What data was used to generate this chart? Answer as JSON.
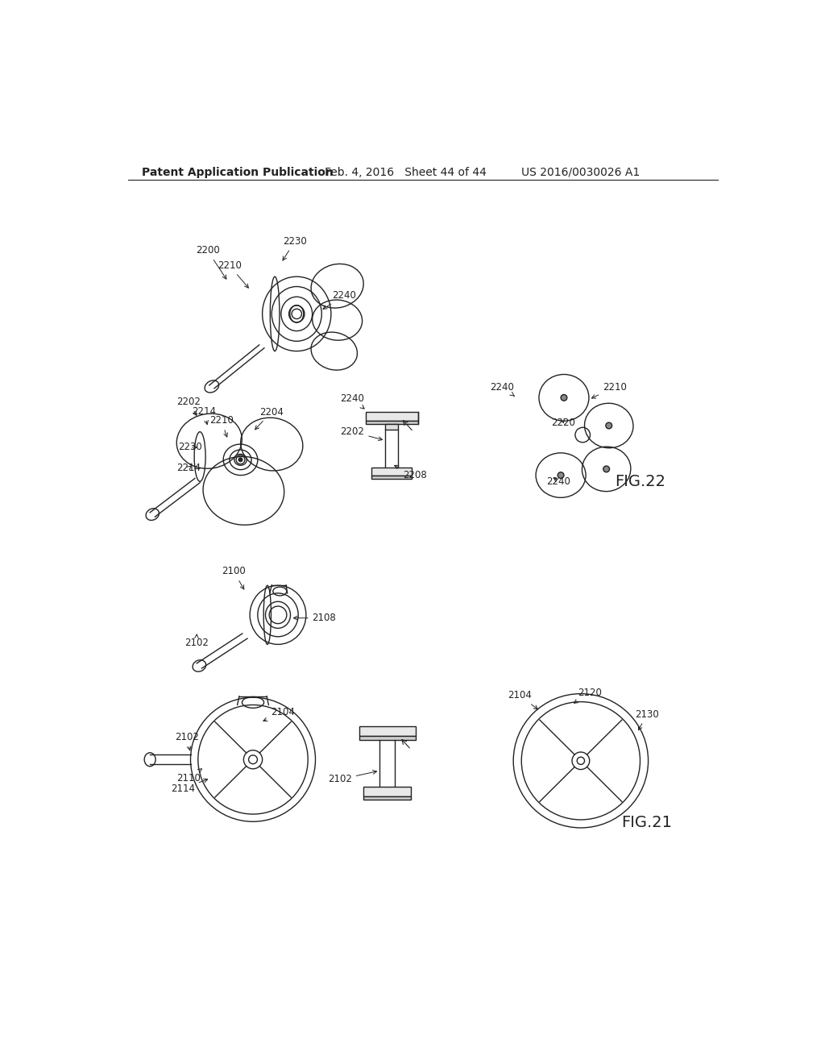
{
  "bg_color": "#ffffff",
  "header_left": "Patent Application Publication",
  "header_mid": "Feb. 4, 2016   Sheet 44 of 44",
  "header_right": "US 2016/0030026 A1",
  "fig22_label": "FIG.22",
  "fig21_label": "FIG.21",
  "header_fontsize": 10,
  "label_fontsize": 9.5,
  "gray": "#222222"
}
